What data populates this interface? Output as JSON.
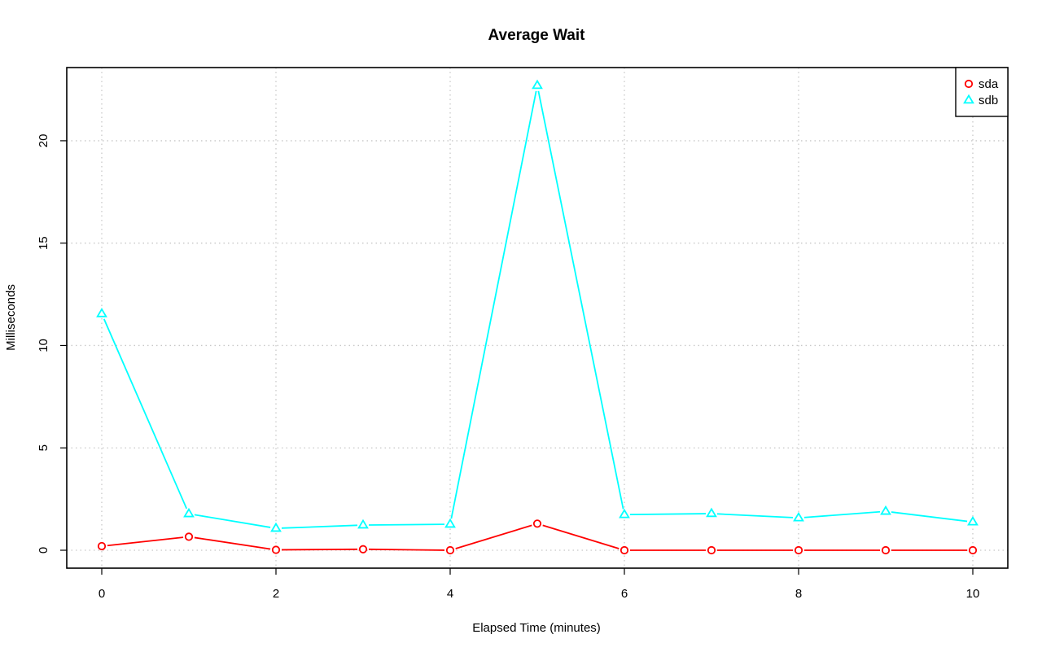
{
  "chart_data": {
    "type": "line",
    "title": "Average Wait",
    "xlabel": "Elapsed Time (minutes)",
    "ylabel": "Milliseconds",
    "xlim": [
      0,
      10
    ],
    "ylim": [
      0,
      22.7
    ],
    "xticks": [
      0,
      2,
      4,
      6,
      8,
      10
    ],
    "yticks": [
      0,
      5,
      10,
      15,
      20
    ],
    "grid": true,
    "legend_position": "top-right",
    "x": [
      0,
      1,
      2,
      3,
      4,
      5,
      6,
      7,
      8,
      9,
      10
    ],
    "series": [
      {
        "name": "sda",
        "color": "#ff0000",
        "marker": "circle",
        "values": [
          0.2,
          0.66,
          0.02,
          0.05,
          0.0,
          1.3,
          0.0,
          0.0,
          0.0,
          0.0,
          0.0
        ]
      },
      {
        "name": "sdb",
        "color": "#00ffff",
        "marker": "triangle",
        "values": [
          11.55,
          1.78,
          1.07,
          1.23,
          1.27,
          22.7,
          1.74,
          1.79,
          1.58,
          1.9,
          1.38
        ]
      }
    ]
  }
}
